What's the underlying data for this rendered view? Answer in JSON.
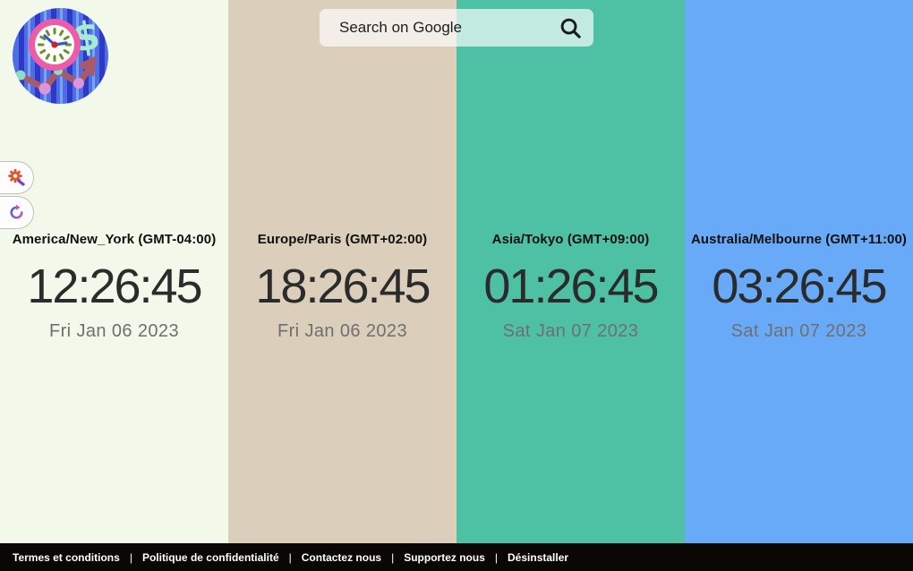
{
  "logo": {
    "icon": "clock-dollar-chart-logo"
  },
  "search": {
    "placeholder": "Search on Google",
    "icon": "magnifier-icon"
  },
  "side_buttons": [
    {
      "icon": "gear-wrench-icon"
    },
    {
      "icon": "refresh-icon"
    }
  ],
  "clocks": [
    {
      "timezone": "America/New_York (GMT-04:00)",
      "time": "12:26:45",
      "date": "Fri Jan 06 2023",
      "bg_color": "#f2f9ea"
    },
    {
      "timezone": "Europe/Paris (GMT+02:00)",
      "time": "18:26:45",
      "date": "Fri Jan 06 2023",
      "bg_color": "#dbceba"
    },
    {
      "timezone": "Asia/Tokyo (GMT+09:00)",
      "time": "01:26:45",
      "date": "Sat Jan 07 2023",
      "bg_color": "#4ec0a4"
    },
    {
      "timezone": "Australia/Melbourne (GMT+11:00)",
      "time": "03:26:45",
      "date": "Sat Jan 07 2023",
      "bg_color": "#68aaf8"
    }
  ],
  "footer": {
    "bg_color": "#0a0705",
    "separator": "|",
    "links": [
      "Termes et conditions",
      "Politique de confidentialité",
      "Contactez nous",
      "Supportez nous",
      "Désinstaller"
    ]
  }
}
